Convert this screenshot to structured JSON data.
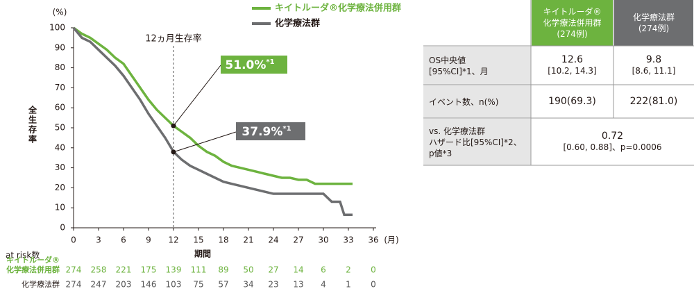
{
  "chart_data": {
    "type": "line",
    "ylabel": "全生存率",
    "yunit": "(%)",
    "xlabel": "期間",
    "xunit": "(月)",
    "xlim": [
      0,
      36
    ],
    "ylim": [
      0,
      100
    ],
    "xticks": [
      0,
      3,
      6,
      9,
      12,
      15,
      18,
      21,
      24,
      27,
      30,
      33,
      36
    ],
    "yticks": [
      0,
      10,
      20,
      30,
      40,
      50,
      60,
      70,
      80,
      90,
      100
    ],
    "series": [
      {
        "name": "キイトルーダ®化学療法併用群",
        "color": "#6db33f",
        "x": [
          0,
          1,
          2,
          3,
          4,
          5,
          6,
          7,
          8,
          9,
          10,
          11,
          12,
          13,
          14,
          15,
          16,
          17,
          18,
          19,
          20,
          21,
          22,
          23,
          24,
          25,
          26,
          27,
          28,
          29,
          30,
          31,
          32,
          33.5
        ],
        "values": [
          100,
          97,
          95,
          92,
          89,
          85,
          82,
          76,
          70,
          64,
          59,
          55,
          51,
          48,
          45,
          41,
          38,
          36,
          33,
          31,
          30,
          29,
          28,
          27,
          26,
          25,
          25,
          24,
          24,
          22,
          22,
          22,
          22,
          22
        ]
      },
      {
        "name": "化学療法群",
        "color": "#6d6e70",
        "x": [
          0,
          1,
          2,
          3,
          4,
          5,
          6,
          7,
          8,
          9,
          10,
          11,
          12,
          13,
          14,
          15,
          16,
          17,
          18,
          19,
          20,
          21,
          22,
          23,
          24,
          25,
          26,
          27,
          28,
          29,
          30,
          31,
          32,
          32.5,
          33.5
        ],
        "values": [
          100,
          95,
          93,
          89,
          85,
          81,
          76,
          70,
          64,
          57,
          51,
          45,
          38,
          34,
          31,
          29,
          27,
          25,
          23,
          22,
          21,
          20,
          19,
          18,
          17,
          17,
          17,
          17,
          17,
          17,
          17,
          13,
          13,
          6.5,
          6.5
        ]
      }
    ],
    "reference_line": {
      "x": 12,
      "label": "12ヵ月生存率"
    },
    "annotations": [
      {
        "series": 0,
        "x": 12,
        "value": 51.0,
        "label": "51.0%",
        "sup": "*1"
      },
      {
        "series": 1,
        "x": 12,
        "value": 37.9,
        "label": "37.9%",
        "sup": "*1"
      }
    ],
    "at_risk": {
      "title": "at risk数",
      "rows": [
        {
          "label": [
            "キイトルーダ®",
            "化学療法併用群"
          ],
          "values": [
            274,
            258,
            221,
            175,
            139,
            111,
            89,
            50,
            27,
            14,
            6,
            2,
            0
          ]
        },
        {
          "label": [
            "化学療法群"
          ],
          "values": [
            274,
            247,
            203,
            146,
            103,
            75,
            57,
            34,
            23,
            13,
            4,
            1,
            0
          ]
        }
      ]
    }
  },
  "table": {
    "header": [
      {
        "lines": [
          "キイトルーダ®",
          "化学療法併用群",
          "(274例)"
        ]
      },
      {
        "lines": [
          "化学療法群",
          "(274例)"
        ]
      }
    ],
    "rows": [
      {
        "label": [
          "OS中央値",
          "[95%CI]*1、月"
        ],
        "cells": [
          [
            "12.6",
            "[10.2, 14.3]"
          ],
          [
            "9.8",
            "[8.6, 11.1]"
          ]
        ]
      },
      {
        "label": [
          "イベント数、n(%)"
        ],
        "cells": [
          [
            "190(69.3)"
          ],
          [
            "222(81.0)"
          ]
        ]
      },
      {
        "label": [
          "vs. 化学療法群",
          "ハザード比[95%CI]*2、",
          "p値*3"
        ],
        "cells": [
          [
            "0.72",
            "[0.60, 0.88]、p=0.0006"
          ]
        ]
      }
    ]
  }
}
